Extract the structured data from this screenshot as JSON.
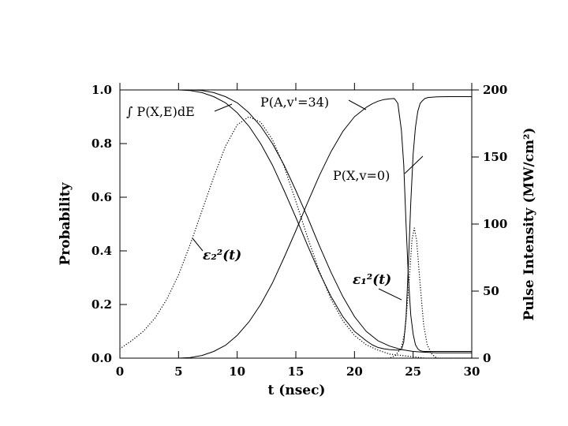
{
  "chart_data": {
    "type": "line",
    "xlabel": "t  (nsec)",
    "ylabel": "Probability",
    "y2label": "Pulse Intensity (MW/cm²)",
    "xlim": [
      0,
      30
    ],
    "ylim": [
      0,
      1.0
    ],
    "y2lim": [
      0,
      200
    ],
    "x_ticks": [
      0,
      5,
      10,
      15,
      20,
      25,
      30
    ],
    "x_tick_labels": [
      "0",
      "5",
      "10",
      "15",
      "20",
      "25",
      "30"
    ],
    "y_ticks": [
      0.0,
      0.2,
      0.4,
      0.6,
      0.8,
      1.0
    ],
    "y_tick_labels": [
      "0.0",
      "0.2",
      "0.4",
      "0.6",
      "0.8",
      "1.0"
    ],
    "y2_ticks": [
      0,
      50,
      100,
      150,
      200
    ],
    "y2_tick_labels": [
      "0",
      "50",
      "100",
      "150",
      "200"
    ],
    "grid": false,
    "series": [
      {
        "name": "P(X,v=0)",
        "style": "solid",
        "axis": "left",
        "x": [
          0,
          5,
          6,
          7,
          8,
          9,
          10,
          11,
          12,
          13,
          14,
          15,
          16,
          17,
          18,
          19,
          20,
          21,
          21.5,
          22,
          22.5,
          23,
          23.5,
          23.8,
          24,
          24.2,
          24.4,
          24.6,
          24.8,
          25,
          25.2,
          25.4,
          25.6,
          25.8,
          26,
          26.3,
          26.6,
          27,
          28,
          30
        ],
        "y": [
          1.0,
          1.0,
          0.998,
          0.99,
          0.975,
          0.952,
          0.915,
          0.865,
          0.8,
          0.72,
          0.625,
          0.525,
          0.42,
          0.32,
          0.23,
          0.155,
          0.1,
          0.065,
          0.05,
          0.04,
          0.035,
          0.032,
          0.03,
          0.03,
          0.032,
          0.06,
          0.15,
          0.35,
          0.58,
          0.76,
          0.86,
          0.92,
          0.95,
          0.96,
          0.968,
          0.972,
          0.973,
          0.974,
          0.975,
          0.975
        ]
      },
      {
        "name": "P(A,v'=34)",
        "style": "solid",
        "axis": "left",
        "x": [
          0,
          5,
          6,
          7,
          8,
          9,
          10,
          11,
          12,
          13,
          14,
          15,
          16,
          17,
          18,
          19,
          20,
          21,
          21.5,
          22,
          22.5,
          23,
          23.4,
          23.7,
          24,
          24.2,
          24.4,
          24.6,
          24.8,
          25,
          25.2,
          25.4,
          25.6,
          25.8,
          26,
          26.3,
          26.6,
          27,
          28,
          30
        ],
        "y": [
          0,
          0,
          0.002,
          0.01,
          0.025,
          0.048,
          0.085,
          0.135,
          0.2,
          0.28,
          0.375,
          0.475,
          0.58,
          0.68,
          0.77,
          0.845,
          0.9,
          0.935,
          0.948,
          0.958,
          0.964,
          0.967,
          0.968,
          0.95,
          0.85,
          0.72,
          0.5,
          0.3,
          0.16,
          0.09,
          0.05,
          0.035,
          0.028,
          0.026,
          0.025,
          0.025,
          0.025,
          0.025,
          0.025,
          0.025
        ]
      },
      {
        "name": "∫P(X,E)dE",
        "style": "solid",
        "axis": "left",
        "x": [
          5,
          6,
          7,
          8,
          9,
          10,
          11,
          12,
          13,
          14,
          15,
          16,
          17,
          18,
          19,
          20,
          21,
          22,
          23,
          24,
          25,
          26,
          27,
          28,
          30
        ],
        "y": [
          1.0,
          1.0,
          0.998,
          0.99,
          0.975,
          0.952,
          0.915,
          0.865,
          0.8,
          0.72,
          0.625,
          0.525,
          0.42,
          0.32,
          0.23,
          0.155,
          0.1,
          0.065,
          0.045,
          0.032,
          0.025,
          0.022,
          0.02,
          0.02,
          0.02
        ]
      },
      {
        "name": "ε₂²(t)",
        "style": "dotted",
        "axis": "right",
        "x": [
          0,
          1,
          2,
          3,
          4,
          5,
          6,
          7,
          8,
          9,
          10,
          11,
          12,
          13,
          14,
          15,
          16,
          17,
          18,
          19,
          20,
          21,
          22,
          23,
          24,
          25,
          26,
          27,
          28,
          30
        ],
        "y": [
          7,
          13,
          20,
          30,
          44,
          62,
          85,
          110,
          135,
          158,
          174,
          180,
          176,
          163,
          143,
          117,
          90,
          65,
          44,
          28,
          17,
          10,
          6,
          3,
          2,
          1,
          0,
          0,
          0,
          0
        ]
      },
      {
        "name": "ε₁²(t)",
        "style": "dotted",
        "axis": "right",
        "x": [
          22,
          23,
          23.5,
          24,
          24.3,
          24.6,
          24.9,
          25.1,
          25.3,
          25.6,
          25.9,
          26.2,
          26.6,
          27,
          28,
          30
        ],
        "y": [
          0,
          0,
          2,
          8,
          20,
          50,
          88,
          97,
          88,
          55,
          25,
          10,
          3,
          0,
          0,
          0
        ]
      }
    ],
    "annotations": [
      {
        "id": "int-p",
        "text": "∫ P(X,E)dE"
      },
      {
        "id": "pa",
        "text": "P(A,v'=34)"
      },
      {
        "id": "px",
        "text": "P(X,v=0)"
      },
      {
        "id": "e2",
        "text": "ε₂²(t)"
      },
      {
        "id": "e1",
        "text": "ε₁²(t)"
      }
    ]
  }
}
